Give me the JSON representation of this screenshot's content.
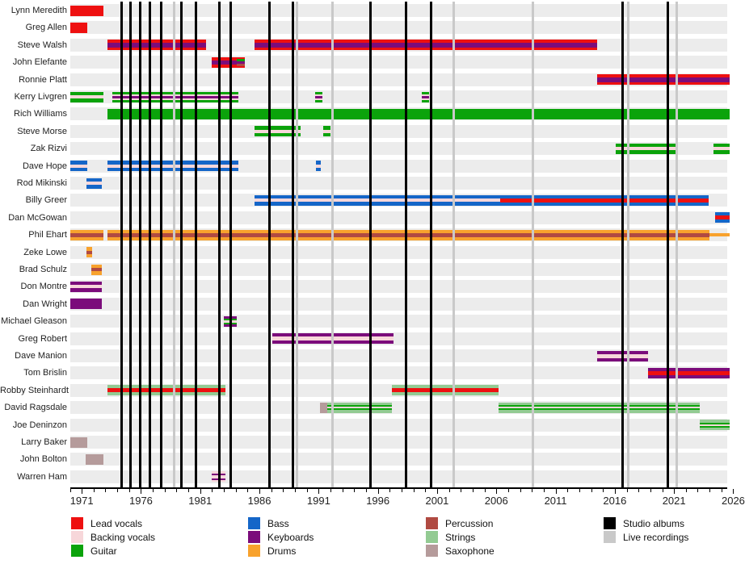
{
  "chart_data": {
    "type": "timeline",
    "x_axis": {
      "start_year": 1970,
      "end_year": 2026,
      "minor_tick_step": 1,
      "labeled_years": [
        1971,
        1976,
        1981,
        1986,
        1991,
        1996,
        2001,
        2006,
        2011,
        2016,
        2021,
        2026
      ]
    },
    "colors": {
      "lead_vocals": "#ee1010",
      "backing_vocals": "#f7d7da",
      "guitar": "#0ba30b",
      "bass": "#1566c8",
      "keyboards": "#7b0c7b",
      "drums": "#f8a22d",
      "percussion": "#b04a42",
      "strings": "#93cb93",
      "saxophone": "#b59b9b",
      "studio_albums": "#000000",
      "live_recordings": "#c9c9c9",
      "row_band": "#ececec"
    },
    "members": [
      {
        "name": "Lynn Meredith",
        "bars": [
          {
            "start": 1970.0,
            "end": 1972.8,
            "bg": "lead_vocals",
            "stripes": []
          }
        ]
      },
      {
        "name": "Greg Allen",
        "bars": [
          {
            "start": 1970.0,
            "end": 1971.5,
            "bg": "lead_vocals",
            "stripes": []
          }
        ]
      },
      {
        "name": "Steve Walsh",
        "bars": [
          {
            "start": 1973.2,
            "end": 1981.5,
            "bg": "lead_vocals",
            "stripes": [
              [
                "keyboards",
                6,
                0
              ]
            ]
          },
          {
            "start": 1985.6,
            "end": 2014.5,
            "bg": "lead_vocals",
            "stripes": [
              [
                "keyboards",
                6,
                0
              ]
            ]
          }
        ]
      },
      {
        "name": "John Elefante",
        "bars": [
          {
            "start": 1982.0,
            "end": 1984.1,
            "bg": "lead_vocals",
            "stripes": [
              [
                "keyboards",
                5,
                0
              ]
            ]
          },
          {
            "start": 1984.1,
            "end": 1984.75,
            "bg": "lead_vocals",
            "stripes": [
              [
                "guitar",
                3,
                -3
              ],
              [
                "keyboards",
                3,
                0
              ],
              [
                "percussion",
                3,
                3
              ]
            ]
          }
        ]
      },
      {
        "name": "Ronnie Platt",
        "bars": [
          {
            "start": 2014.5,
            "end": 2025.7,
            "bg": "lead_vocals",
            "stripes": [
              [
                "keyboards",
                6,
                0
              ]
            ]
          }
        ]
      },
      {
        "name": "Kerry Livgren",
        "bars": [
          {
            "start": 1970.0,
            "end": 1972.8,
            "bg": "guitar",
            "stripes": [
              [
                "backing_vocals",
                4,
                0
              ]
            ]
          },
          {
            "start": 1973.6,
            "end": 1984.2,
            "bg": "guitar",
            "stripes": [
              [
                "backing_vocals",
                7,
                0
              ],
              [
                "keyboards",
                3,
                0
              ]
            ]
          },
          {
            "start": 1990.7,
            "end": 1991.3,
            "bg": "guitar",
            "stripes": [
              [
                "backing_vocals",
                7,
                0
              ],
              [
                "keyboards",
                3,
                0
              ]
            ]
          },
          {
            "start": 1999.7,
            "end": 2000.3,
            "bg": "guitar",
            "stripes": [
              [
                "backing_vocals",
                7,
                0
              ],
              [
                "keyboards",
                3,
                0
              ]
            ]
          }
        ]
      },
      {
        "name": "Rich Williams",
        "bars": [
          {
            "start": 1973.2,
            "end": 2025.7,
            "bg": "guitar",
            "stripes": []
          }
        ]
      },
      {
        "name": "Steve Morse",
        "bars": [
          {
            "start": 1985.6,
            "end": 1989.5,
            "bg": "guitar",
            "stripes": [
              [
                "backing_vocals",
                4,
                0
              ]
            ]
          },
          {
            "start": 1991.4,
            "end": 1992.0,
            "bg": "guitar",
            "stripes": [
              [
                "backing_vocals",
                4,
                0
              ]
            ]
          }
        ]
      },
      {
        "name": "Zak Rizvi",
        "bars": [
          {
            "start": 2016.1,
            "end": 2021.2,
            "bg": "guitar",
            "stripes": [
              [
                "backing_vocals",
                4,
                0
              ]
            ]
          },
          {
            "start": 2024.3,
            "end": 2025.7,
            "bg": "guitar",
            "stripes": [
              [
                "backing_vocals",
                4,
                0
              ]
            ]
          }
        ]
      },
      {
        "name": "Dave Hope",
        "bars": [
          {
            "start": 1970.0,
            "end": 1971.5,
            "bg": "bass",
            "stripes": [
              [
                "backing_vocals",
                4,
                0
              ]
            ]
          },
          {
            "start": 1973.2,
            "end": 1984.2,
            "bg": "bass",
            "stripes": [
              [
                "backing_vocals",
                4,
                0
              ]
            ]
          },
          {
            "start": 1990.8,
            "end": 1991.2,
            "bg": "bass",
            "stripes": [
              [
                "backing_vocals",
                4,
                0
              ]
            ]
          }
        ]
      },
      {
        "name": "Rod Mikinski",
        "bars": [
          {
            "start": 1971.4,
            "end": 1972.7,
            "bg": "bass",
            "stripes": [
              [
                "backing_vocals",
                4,
                0
              ]
            ]
          }
        ]
      },
      {
        "name": "Billy Greer",
        "bars": [
          {
            "start": 1985.6,
            "end": 2006.3,
            "bg": "bass",
            "stripes": [
              [
                "backing_vocals",
                4,
                0
              ]
            ]
          },
          {
            "start": 2006.3,
            "end": 2023.9,
            "bg": "bass",
            "stripes": [
              [
                "lead_vocals",
                5,
                0
              ]
            ]
          }
        ]
      },
      {
        "name": "Dan McGowan",
        "bars": [
          {
            "start": 2024.5,
            "end": 2025.7,
            "bg": "bass",
            "stripes": [
              [
                "lead_vocals",
                5,
                0
              ]
            ]
          }
        ]
      },
      {
        "name": "Phil Ehart",
        "bars": [
          {
            "start": 1970.0,
            "end": 1972.8,
            "bg": "drums",
            "stripes": [
              [
                "percussion",
                5,
                0
              ]
            ]
          },
          {
            "start": 1973.2,
            "end": 2024.0,
            "bg": "drums",
            "stripes": [
              [
                "percussion",
                5,
                0
              ]
            ]
          },
          {
            "start": 2024.0,
            "end": 2025.7,
            "bg": "drums",
            "stripes": [],
            "h": 4
          }
        ]
      },
      {
        "name": "Zeke Lowe",
        "bars": [
          {
            "start": 1971.4,
            "end": 1971.9,
            "bg": "drums",
            "stripes": [
              [
                "percussion",
                4,
                0
              ]
            ]
          }
        ]
      },
      {
        "name": "Brad Schulz",
        "bars": [
          {
            "start": 1971.8,
            "end": 1972.7,
            "bg": "drums",
            "stripes": [
              [
                "percussion",
                4,
                0
              ]
            ]
          }
        ]
      },
      {
        "name": "Don Montre",
        "bars": [
          {
            "start": 1970.0,
            "end": 1972.7,
            "bg": "keyboards",
            "stripes": [
              [
                "backing_vocals",
                4,
                0
              ]
            ]
          }
        ]
      },
      {
        "name": "Dan Wright",
        "bars": [
          {
            "start": 1970.0,
            "end": 1972.7,
            "bg": "keyboards",
            "stripes": []
          }
        ]
      },
      {
        "name": "Michael Gleason",
        "bars": [
          {
            "start": 1983.0,
            "end": 1984.1,
            "bg": "keyboards",
            "stripes": [
              [
                "guitar",
                7,
                0
              ],
              [
                "backing_vocals",
                3,
                0
              ]
            ]
          }
        ]
      },
      {
        "name": "Greg Robert",
        "bars": [
          {
            "start": 1987.1,
            "end": 1997.3,
            "bg": "keyboards",
            "stripes": [
              [
                "backing_vocals",
                5,
                0
              ]
            ]
          }
        ]
      },
      {
        "name": "Dave Manion",
        "bars": [
          {
            "start": 2014.5,
            "end": 2018.8,
            "bg": "keyboards",
            "stripes": [
              [
                "backing_vocals",
                5,
                0
              ]
            ]
          }
        ]
      },
      {
        "name": "Tom Brislin",
        "bars": [
          {
            "start": 2018.8,
            "end": 2025.7,
            "bg": "keyboards",
            "stripes": [
              [
                "lead_vocals",
                5,
                0
              ]
            ]
          }
        ]
      },
      {
        "name": "Robby Steinhardt",
        "bars": [
          {
            "start": 1973.2,
            "end": 1983.1,
            "bg": "strings",
            "stripes": [
              [
                "lead_vocals",
                5,
                0
              ]
            ]
          },
          {
            "start": 1997.2,
            "end": 2006.2,
            "bg": "strings",
            "stripes": [
              [
                "lead_vocals",
                5,
                0
              ]
            ]
          }
        ]
      },
      {
        "name": "David Ragsdale",
        "bars": [
          {
            "start": 1991.1,
            "end": 1991.7,
            "bg": "saxophone",
            "stripes": []
          },
          {
            "start": 1991.7,
            "end": 1997.2,
            "bg": "strings",
            "stripes": [
              [
                "guitar",
                6,
                0
              ],
              [
                "backing_vocals",
                2,
                0
              ]
            ]
          },
          {
            "start": 2006.2,
            "end": 2023.2,
            "bg": "strings",
            "stripes": [
              [
                "guitar",
                6,
                0
              ],
              [
                "backing_vocals",
                2,
                0
              ]
            ]
          }
        ]
      },
      {
        "name": "Joe Deninzon",
        "bars": [
          {
            "start": 2023.2,
            "end": 2025.7,
            "bg": "strings",
            "stripes": [
              [
                "guitar",
                6,
                0
              ],
              [
                "backing_vocals",
                2,
                0
              ]
            ]
          }
        ]
      },
      {
        "name": "Larry Baker",
        "bars": [
          {
            "start": 1970.0,
            "end": 1971.5,
            "bg": "saxophone",
            "stripes": []
          }
        ]
      },
      {
        "name": "John Bolton",
        "bars": [
          {
            "start": 1971.3,
            "end": 1972.8,
            "bg": "saxophone",
            "stripes": []
          }
        ]
      },
      {
        "name": "Warren Ham",
        "bars": [
          {
            "start": 1982.0,
            "end": 1983.1,
            "bg": "backing_vocals",
            "stripes": [
              [
                "keyboards",
                2,
                -3
              ],
              [
                "keyboards",
                2,
                3
              ]
            ]
          }
        ]
      }
    ],
    "album_markers": {
      "studio": [
        1974.35,
        1975.1,
        1975.95,
        1976.75,
        1977.7,
        1979.4,
        1980.65,
        1982.6,
        1983.6,
        1986.85,
        1988.8,
        1995.35,
        1998.4,
        2000.5,
        2016.65,
        2020.45
      ],
      "live": [
        1978.8,
        1989.2,
        1992.2,
        2002.4,
        2009.1,
        2017.15,
        2021.25
      ]
    },
    "legend": {
      "columns": [
        [
          {
            "label": "Lead vocals",
            "role": "lead_vocals"
          },
          {
            "label": "Backing vocals",
            "role": "backing_vocals"
          },
          {
            "label": "Guitar",
            "role": "guitar"
          }
        ],
        [
          {
            "label": "Bass",
            "role": "bass"
          },
          {
            "label": "Keyboards",
            "role": "keyboards"
          },
          {
            "label": "Drums",
            "role": "drums"
          }
        ],
        [
          {
            "label": "Percussion",
            "role": "percussion"
          },
          {
            "label": "Strings",
            "role": "strings"
          },
          {
            "label": "Saxophone",
            "role": "saxophone"
          }
        ],
        [
          {
            "label": "Studio albums",
            "role": "studio_albums"
          },
          {
            "label": "Live recordings",
            "role": "live_recordings"
          }
        ]
      ]
    }
  }
}
